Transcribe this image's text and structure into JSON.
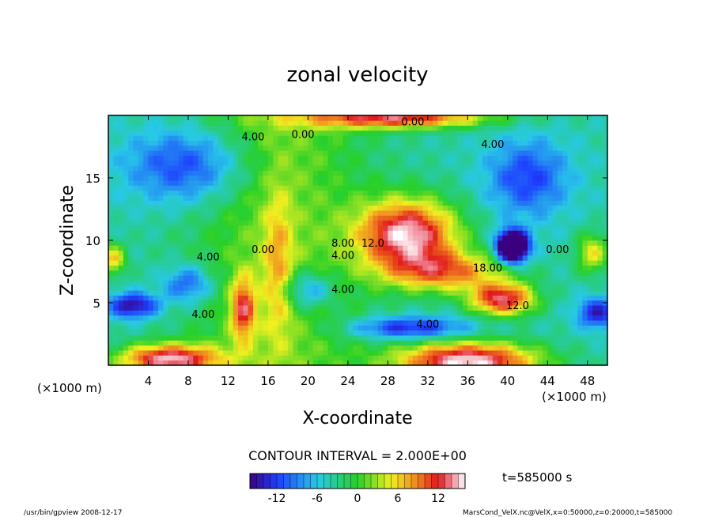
{
  "chart_data": {
    "type": "heatmap",
    "title": "zonal velocity",
    "xlabel": "X-coordinate",
    "ylabel": "Z-coordinate",
    "x_unit_note": "(×1000 m)",
    "y_unit_note": "(×1000 m)",
    "xlim": [
      0,
      50
    ],
    "ylim": [
      0,
      20
    ],
    "x_ticks": [
      4,
      8,
      12,
      16,
      20,
      24,
      28,
      32,
      36,
      40,
      44,
      48
    ],
    "y_ticks": [
      5,
      10,
      15
    ],
    "contour_interval_text": "CONTOUR INTERVAL = 2.000E+00",
    "time_text": "t=585000 s",
    "colorbar": {
      "range": [
        -16,
        16
      ],
      "ticks": [
        -12,
        -6,
        0,
        6,
        12
      ]
    },
    "contour_labels": [
      {
        "text": "4.00",
        "x": 14.5,
        "y": 18.0
      },
      {
        "text": "0.00",
        "x": 19.5,
        "y": 18.2
      },
      {
        "text": "0.00",
        "x": 30.5,
        "y": 19.2
      },
      {
        "text": "4.00",
        "x": 38.5,
        "y": 17.4
      },
      {
        "text": "0.00",
        "x": 15.5,
        "y": 9.0
      },
      {
        "text": "4.00",
        "x": 10.0,
        "y": 8.4
      },
      {
        "text": "8.00",
        "x": 23.5,
        "y": 9.5
      },
      {
        "text": "12.0",
        "x": 26.5,
        "y": 9.5
      },
      {
        "text": "4.00",
        "x": 23.5,
        "y": 8.5
      },
      {
        "text": "4.00",
        "x": 23.5,
        "y": 5.8
      },
      {
        "text": "4.00",
        "x": 9.5,
        "y": 3.8
      },
      {
        "text": "4.00",
        "x": 32.0,
        "y": 3.0
      },
      {
        "text": "12.0",
        "x": 41.0,
        "y": 4.5
      },
      {
        "text": "18.00",
        "x": 38.0,
        "y": 7.5
      },
      {
        "text": "0.00",
        "x": 45.0,
        "y": 9.0
      }
    ],
    "field_features": [
      {
        "label": "strong eastward jet core",
        "x": 30,
        "y": 10.5,
        "value": 16
      },
      {
        "label": "eastward lobe",
        "x": 39.5,
        "y": 5.2,
        "value": 15
      },
      {
        "label": "surface eastward flow",
        "x": 36,
        "y": 0.5,
        "value": 16
      },
      {
        "label": "westward vortex",
        "x": 40.5,
        "y": 9.5,
        "value": -16
      },
      {
        "label": "westward near surface",
        "x": 3,
        "y": 4.5,
        "value": -10
      }
    ]
  },
  "footer": {
    "left": "/usr/bin/gpview   2008-12-17",
    "right": "MarsCond_VelX.nc@VelX,x=0:50000,z=0:20000,t=585000"
  },
  "colors": {
    "min": "#3a0080",
    "blue": "#1e3cff",
    "cyan": "#28c8e8",
    "green": "#28d028",
    "yellow": "#f0f020",
    "orange": "#f08020",
    "red": "#e01818",
    "pink": "#f08898",
    "max": "#ffffff"
  }
}
